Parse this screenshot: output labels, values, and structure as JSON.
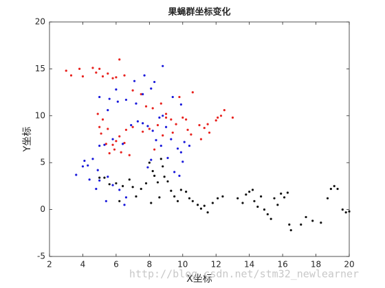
{
  "chart_data": {
    "type": "scatter",
    "title": "果蝇群坐标变化",
    "x_label": "X坐标",
    "y_label": "Y坐标",
    "watermark": "http://blog.csdn.net/stm32_newlearner",
    "xlim": [
      2,
      20
    ],
    "xticks": [
      2,
      4,
      6,
      8,
      10,
      12,
      14,
      16,
      18,
      20
    ],
    "ylim": [
      -5,
      20
    ],
    "yticks": [
      -5,
      0,
      5,
      10,
      15,
      20
    ],
    "grid": false,
    "series": [
      {
        "color": "#e8231f",
        "x": [
          3,
          3.3,
          3.8,
          4,
          4.6,
          4.8,
          5,
          5.2,
          5.5,
          5.8,
          6,
          6.2,
          6.5,
          7,
          7.5,
          7.8,
          8.2,
          8.7,
          9,
          9.3,
          9.8,
          10,
          10.6,
          11,
          11.3,
          11.6,
          12,
          12.3,
          12.5,
          13,
          12.1,
          11.1,
          10.3,
          9.6,
          9,
          8.5,
          8,
          7.6,
          7,
          6.6,
          6.2,
          6,
          5.8,
          5.4,
          5.1,
          5,
          4.9,
          5.2,
          5.5,
          5.6,
          5.9,
          6.3,
          6.8,
          6.5,
          8.3,
          8.8,
          9.4,
          10.5,
          10.2,
          11.5
        ],
        "values": [
          14.8,
          14.3,
          15,
          14.2,
          15.1,
          14.6,
          15,
          14.2,
          14.5,
          14,
          14.1,
          16,
          14.3,
          12.7,
          12.3,
          11,
          10.8,
          11.3,
          10.2,
          9.6,
          12,
          9.8,
          12.5,
          9,
          8.7,
          8.2,
          9.5,
          10,
          10.6,
          9.8,
          9.8,
          7.5,
          8.5,
          9.1,
          9.8,
          9,
          8.6,
          8.3,
          8.8,
          8.5,
          7.8,
          7.3,
          6.9,
          7,
          8.1,
          8.8,
          10.2,
          9.6,
          8.6,
          6,
          6.4,
          6.1,
          5.8,
          7.1,
          6.4,
          7.9,
          8.2,
          8,
          9.6,
          9.1
        ]
      },
      {
        "color": "#1a1adb",
        "x": [
          3.6,
          4,
          4.1,
          4.3,
          4.6,
          4.9,
          5,
          5.3,
          4.4,
          5,
          5.5,
          5.8,
          6.2,
          6.6,
          6.5,
          5.4,
          4.8,
          5.8,
          6.4,
          6.9,
          7.3,
          7.6,
          7.9,
          8.2,
          8.6,
          8.8,
          9,
          9.3,
          9.7,
          9.9,
          10,
          9.5,
          9.8,
          9.1,
          8.7,
          8.4,
          7.9,
          8.1,
          5,
          5.6,
          6.1,
          6.6,
          7.2,
          7.6,
          8.1,
          8.8,
          7.7,
          8.3,
          7.1,
          6,
          5.5,
          9.4,
          9.9,
          10.1,
          10.4
        ],
        "values": [
          3.7,
          4.6,
          5.2,
          4.7,
          5.4,
          4.2,
          6.8,
          6.9,
          3.2,
          3.1,
          3.5,
          2.6,
          2.1,
          1.3,
          0.5,
          0.9,
          2.2,
          7.5,
          7,
          9,
          9.4,
          9.2,
          8.9,
          8.4,
          9.8,
          10,
          8.8,
          7.5,
          6.5,
          6.1,
          5.1,
          4,
          3.6,
          5.5,
          6.8,
          7.4,
          4.5,
          5.3,
          12,
          11.8,
          11.5,
          11.7,
          11.3,
          12.3,
          12.9,
          15.3,
          14.3,
          13.6,
          13.7,
          12.8,
          10.6,
          12,
          11.2,
          7.2,
          6.8
        ]
      },
      {
        "color": "#111111",
        "x": [
          5,
          5.3,
          5.6,
          6,
          6.4,
          6.8,
          7,
          7.2,
          7.5,
          7.8,
          8,
          8.2,
          8.3,
          8.5,
          8.7,
          8.8,
          8.9,
          9.1,
          9.3,
          9.5,
          9.7,
          9.9,
          10.2,
          10.4,
          10.6,
          10.9,
          11.1,
          11.3,
          11.5,
          11.8,
          12.1,
          12.4,
          13.3,
          13.6,
          13.8,
          14,
          14.2,
          14.3,
          14.5,
          14.7,
          14.9,
          15.1,
          15.3,
          15.5,
          15.7,
          15.9,
          16.1,
          16.3,
          16.4,
          16.5,
          17.1,
          17.4,
          17.8,
          18.3,
          18.7,
          18.9,
          19.1,
          19.3,
          19.6,
          19.8,
          20,
          8.6,
          8.1,
          6.2
        ],
        "values": [
          3.4,
          3.4,
          2.7,
          2.8,
          2.5,
          3.2,
          2.4,
          1.4,
          2.2,
          2.8,
          5,
          4.1,
          3.6,
          2.9,
          5.4,
          4.6,
          3.5,
          3,
          2,
          1.4,
          0.9,
          2.1,
          1.9,
          1.2,
          0.9,
          0.5,
          0.1,
          0.4,
          -0.3,
          0.7,
          1.2,
          1.4,
          1.2,
          0.7,
          1.6,
          1.9,
          2.1,
          0.9,
          0.3,
          1.4,
          0,
          -0.5,
          -1,
          1.2,
          0.5,
          1.7,
          1.3,
          1.8,
          -1.6,
          -2.2,
          -1.6,
          -0.8,
          -1.2,
          -1.4,
          1.2,
          2.2,
          2.5,
          2.2,
          0,
          -0.3,
          -0.2,
          1.3,
          0.7,
          0.9
        ]
      }
    ]
  }
}
